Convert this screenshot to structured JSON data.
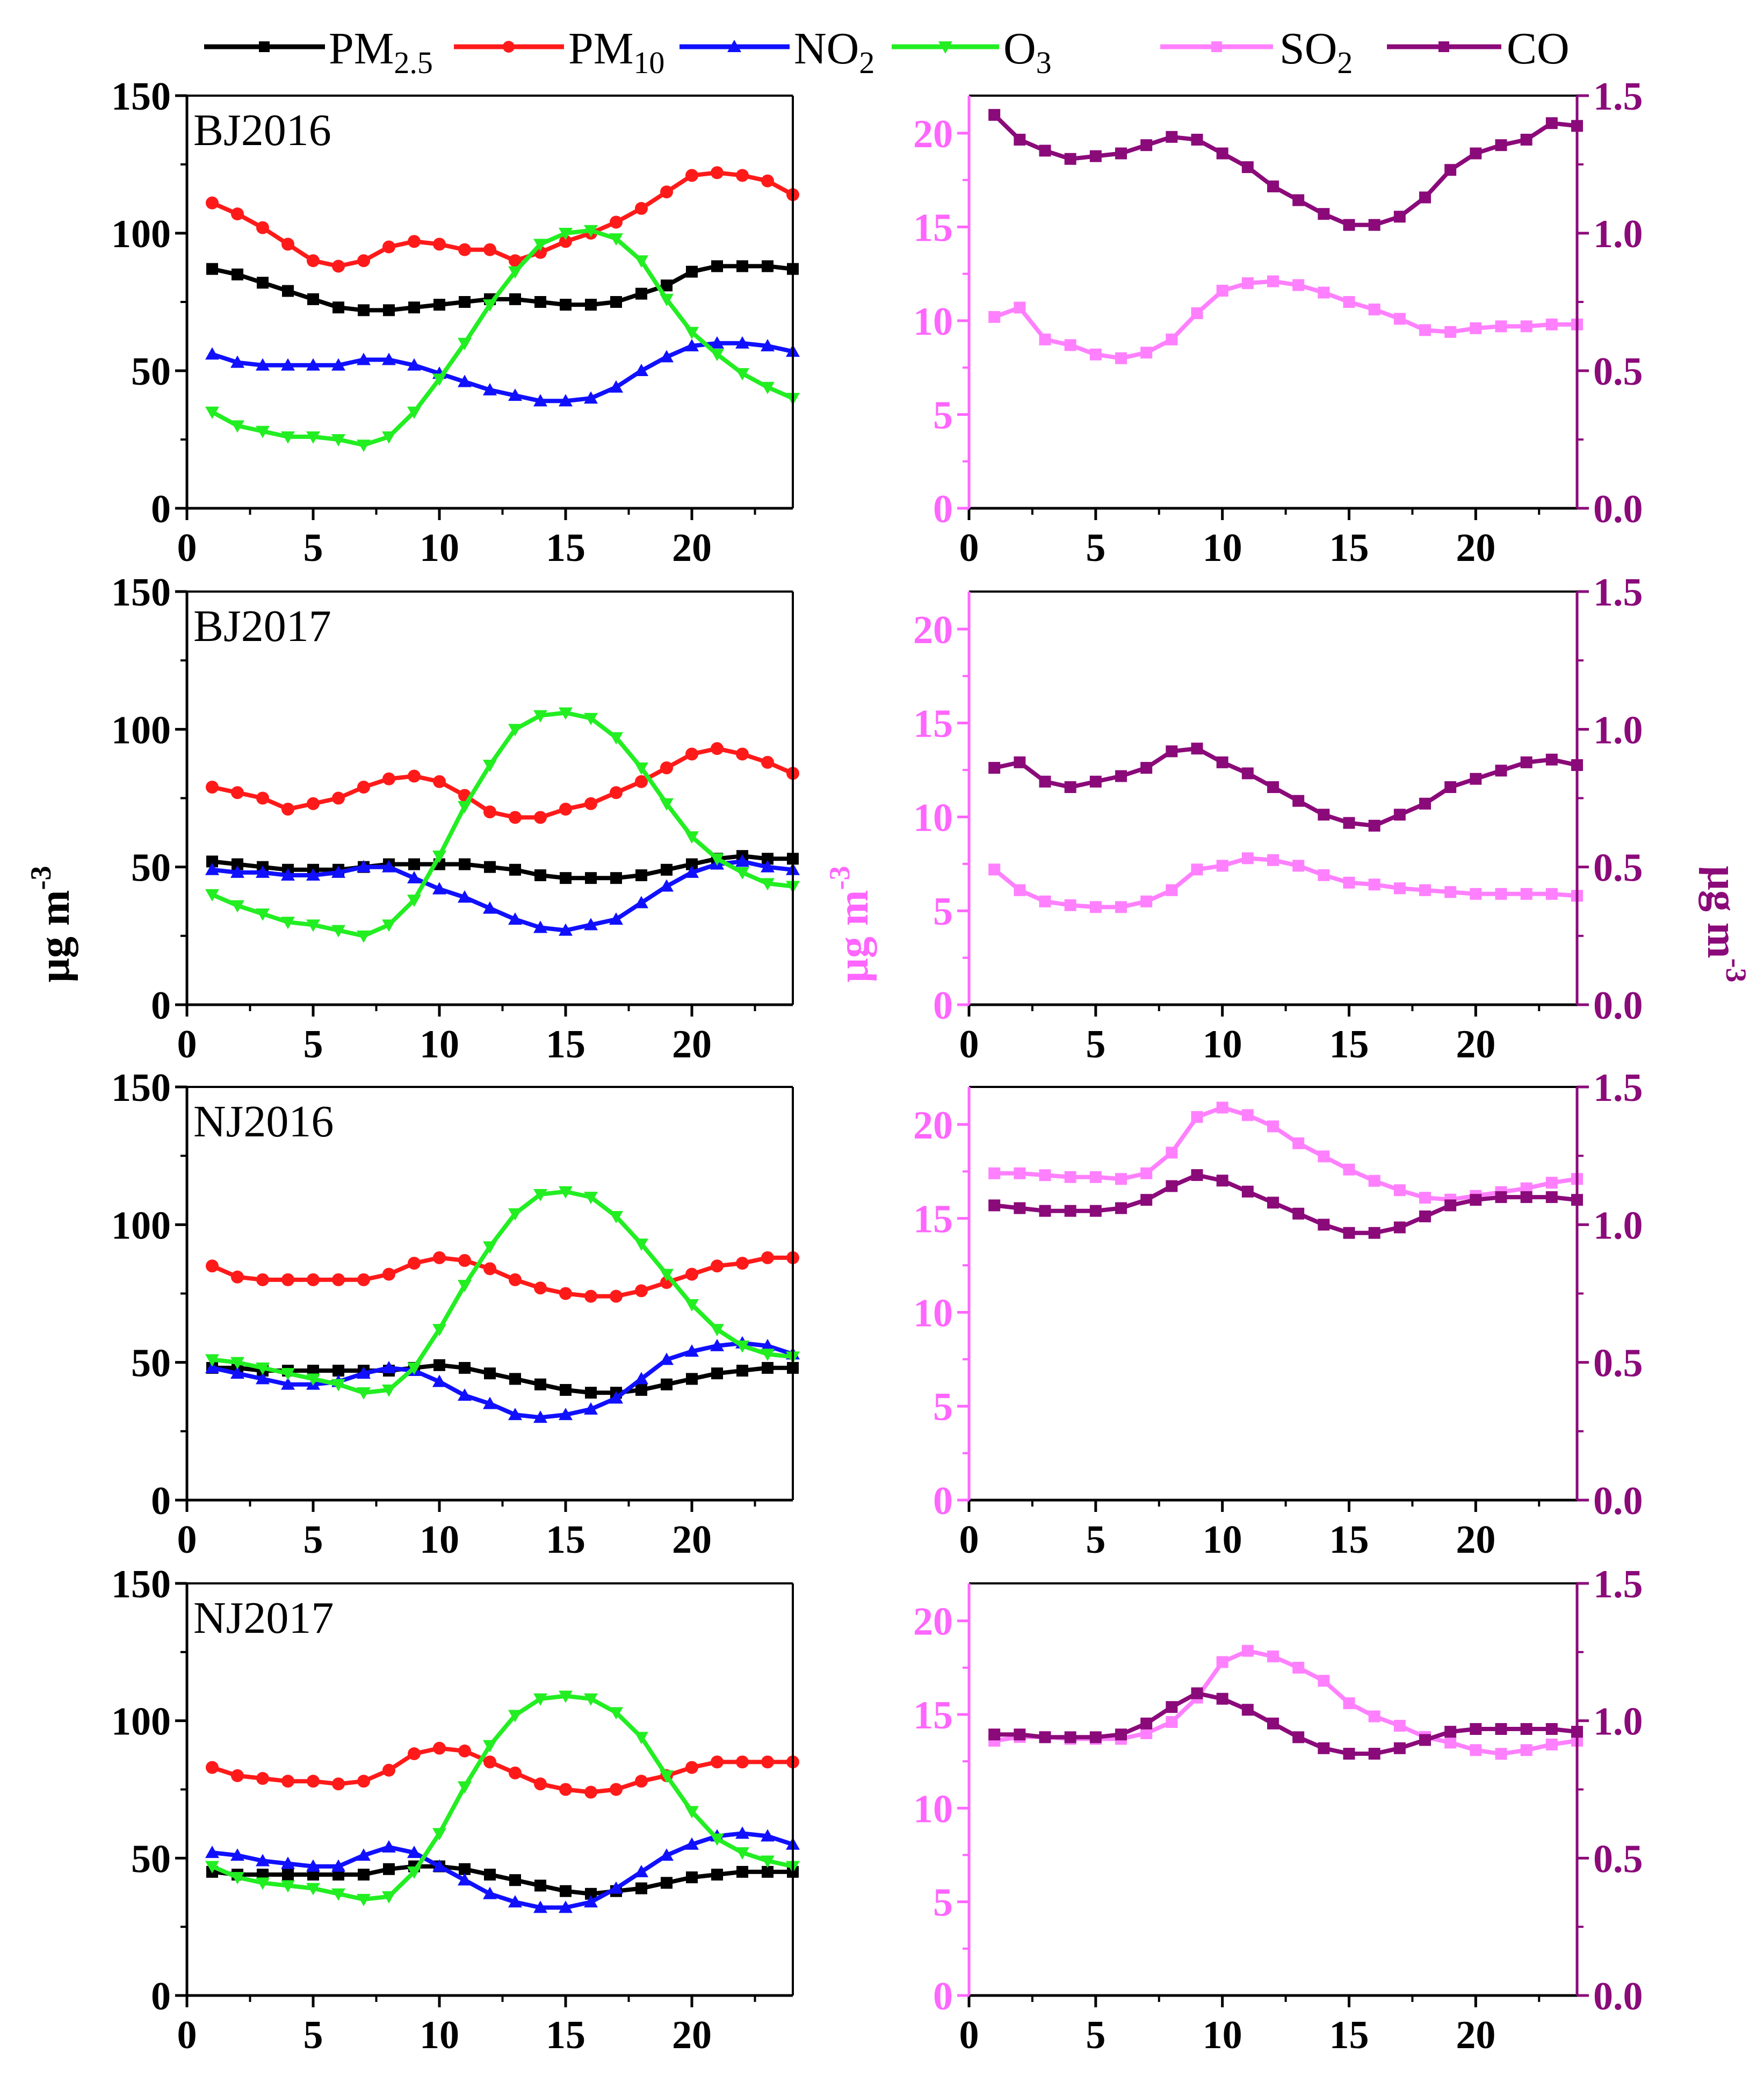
{
  "colors": {
    "pm25": "#000000",
    "pm10": "#ff1a1a",
    "no2": "#1010ff",
    "o3": "#22ee22",
    "so2": "#ff80ff",
    "co": "#8b0a7a",
    "so2_axis": "#ff66ff",
    "co_axis": "#8b0a7a"
  },
  "legend": {
    "pm25": "PM2.5",
    "pm10": "PM10",
    "no2": "NO2",
    "o3": "O3",
    "so2": "SO2",
    "co": "CO"
  },
  "axis_labels": {
    "left": "μg m-3",
    "middle": "μg m-3",
    "right": "μg m-3"
  },
  "chart_data": [
    {
      "type": "line",
      "title": "BJ2016",
      "xlim": [
        0,
        24
      ],
      "ylim": [
        0,
        150
      ],
      "xticks": [
        0,
        5,
        10,
        15,
        20
      ],
      "yticks": [
        0,
        50,
        100,
        150
      ],
      "x": [
        1,
        2,
        3,
        4,
        5,
        6,
        7,
        8,
        9,
        10,
        11,
        12,
        13,
        14,
        15,
        16,
        17,
        18,
        19,
        20,
        21,
        22,
        23,
        24
      ],
      "series": [
        {
          "name": "PM2.5",
          "key": "pm25",
          "values": [
            87,
            85,
            82,
            79,
            76,
            73,
            72,
            72,
            73,
            74,
            75,
            76,
            76,
            75,
            74,
            74,
            75,
            78,
            81,
            86,
            88,
            88,
            88,
            87
          ]
        },
        {
          "name": "PM10",
          "key": "pm10",
          "values": [
            111,
            107,
            102,
            96,
            90,
            88,
            90,
            95,
            97,
            96,
            94,
            94,
            90,
            93,
            97,
            100,
            104,
            109,
            115,
            121,
            122,
            121,
            119,
            114
          ]
        },
        {
          "name": "NO2",
          "key": "no2",
          "values": [
            56,
            53,
            52,
            52,
            52,
            52,
            54,
            54,
            52,
            49,
            46,
            43,
            41,
            39,
            39,
            40,
            44,
            50,
            55,
            59,
            60,
            60,
            59,
            57
          ]
        },
        {
          "name": "O3",
          "key": "o3",
          "values": [
            35,
            30,
            28,
            26,
            26,
            25,
            23,
            26,
            35,
            47,
            60,
            74,
            86,
            96,
            100,
            101,
            98,
            90,
            76,
            64,
            56,
            49,
            44,
            40
          ]
        }
      ]
    },
    {
      "type": "line",
      "title": "BJ2016",
      "xlim": [
        0,
        24
      ],
      "ylim": [
        0,
        22
      ],
      "y2lim": [
        0,
        1.5
      ],
      "xticks": [
        0,
        5,
        10,
        15,
        20
      ],
      "yticks": [
        0,
        5,
        10,
        15,
        20
      ],
      "y2ticks": [
        "0.0",
        "0.5",
        "1.0",
        "1.5"
      ],
      "x": [
        1,
        2,
        3,
        4,
        5,
        6,
        7,
        8,
        9,
        10,
        11,
        12,
        13,
        14,
        15,
        16,
        17,
        18,
        19,
        20,
        21,
        22,
        23,
        24
      ],
      "series": [
        {
          "name": "SO2",
          "key": "so2",
          "axis": "left",
          "values": [
            10.2,
            10.7,
            9.0,
            8.7,
            8.2,
            8.0,
            8.3,
            9.0,
            10.4,
            11.6,
            12.0,
            12.1,
            11.9,
            11.5,
            11.0,
            10.6,
            10.1,
            9.5,
            9.4,
            9.6,
            9.7,
            9.7,
            9.8,
            9.8
          ]
        },
        {
          "name": "CO",
          "key": "co",
          "axis": "right",
          "values": [
            1.43,
            1.34,
            1.3,
            1.27,
            1.28,
            1.29,
            1.32,
            1.35,
            1.34,
            1.29,
            1.24,
            1.17,
            1.12,
            1.07,
            1.03,
            1.03,
            1.06,
            1.13,
            1.23,
            1.29,
            1.32,
            1.34,
            1.4,
            1.39
          ]
        }
      ]
    },
    {
      "type": "line",
      "title": "BJ2017",
      "xlim": [
        0,
        24
      ],
      "ylim": [
        0,
        150
      ],
      "xticks": [
        0,
        5,
        10,
        15,
        20
      ],
      "yticks": [
        0,
        50,
        100,
        150
      ],
      "x": [
        1,
        2,
        3,
        4,
        5,
        6,
        7,
        8,
        9,
        10,
        11,
        12,
        13,
        14,
        15,
        16,
        17,
        18,
        19,
        20,
        21,
        22,
        23,
        24
      ],
      "series": [
        {
          "name": "PM2.5",
          "key": "pm25",
          "values": [
            52,
            51,
            50,
            49,
            49,
            49,
            50,
            51,
            51,
            51,
            51,
            50,
            49,
            47,
            46,
            46,
            46,
            47,
            49,
            51,
            53,
            54,
            53,
            53
          ]
        },
        {
          "name": "PM10",
          "key": "pm10",
          "values": [
            79,
            77,
            75,
            71,
            73,
            75,
            79,
            82,
            83,
            81,
            76,
            70,
            68,
            68,
            71,
            73,
            77,
            81,
            86,
            91,
            93,
            91,
            88,
            84
          ]
        },
        {
          "name": "NO2",
          "key": "no2",
          "values": [
            49,
            48,
            48,
            47,
            47,
            48,
            50,
            50,
            46,
            42,
            39,
            35,
            31,
            28,
            27,
            29,
            31,
            37,
            43,
            48,
            51,
            52,
            50,
            49
          ]
        },
        {
          "name": "O3",
          "key": "o3",
          "values": [
            40,
            36,
            33,
            30,
            29,
            27,
            25,
            29,
            38,
            54,
            72,
            87,
            100,
            105,
            106,
            104,
            97,
            86,
            73,
            61,
            53,
            48,
            44,
            43
          ]
        }
      ]
    },
    {
      "type": "line",
      "title": "BJ2017",
      "xlim": [
        0,
        24
      ],
      "ylim": [
        0,
        22
      ],
      "y2lim": [
        0,
        1.5
      ],
      "xticks": [
        0,
        5,
        10,
        15,
        20
      ],
      "yticks": [
        0,
        5,
        10,
        15,
        20
      ],
      "y2ticks": [
        "0.0",
        "0.5",
        "1.0",
        "1.5"
      ],
      "x": [
        1,
        2,
        3,
        4,
        5,
        6,
        7,
        8,
        9,
        10,
        11,
        12,
        13,
        14,
        15,
        16,
        17,
        18,
        19,
        20,
        21,
        22,
        23,
        24
      ],
      "series": [
        {
          "name": "SO2",
          "key": "so2",
          "axis": "left",
          "values": [
            7.2,
            6.1,
            5.5,
            5.3,
            5.2,
            5.2,
            5.5,
            6.1,
            7.2,
            7.4,
            7.8,
            7.7,
            7.4,
            6.9,
            6.5,
            6.4,
            6.2,
            6.1,
            6.0,
            5.9,
            5.9,
            5.9,
            5.9,
            5.8
          ]
        },
        {
          "name": "CO",
          "key": "co",
          "axis": "right",
          "values": [
            0.86,
            0.88,
            0.81,
            0.79,
            0.81,
            0.83,
            0.86,
            0.92,
            0.93,
            0.88,
            0.84,
            0.79,
            0.74,
            0.69,
            0.66,
            0.65,
            0.69,
            0.73,
            0.79,
            0.82,
            0.85,
            0.88,
            0.89,
            0.87
          ]
        }
      ]
    },
    {
      "type": "line",
      "title": "NJ2016",
      "xlim": [
        0,
        24
      ],
      "ylim": [
        0,
        150
      ],
      "xticks": [
        0,
        5,
        10,
        15,
        20
      ],
      "yticks": [
        0,
        50,
        100,
        150
      ],
      "x": [
        1,
        2,
        3,
        4,
        5,
        6,
        7,
        8,
        9,
        10,
        11,
        12,
        13,
        14,
        15,
        16,
        17,
        18,
        19,
        20,
        21,
        22,
        23,
        24
      ],
      "series": [
        {
          "name": "PM2.5",
          "key": "pm25",
          "values": [
            48,
            48,
            47,
            47,
            47,
            47,
            47,
            47,
            48,
            49,
            48,
            46,
            44,
            42,
            40,
            39,
            39,
            40,
            42,
            44,
            46,
            47,
            48,
            48
          ]
        },
        {
          "name": "PM10",
          "key": "pm10",
          "values": [
            85,
            81,
            80,
            80,
            80,
            80,
            80,
            82,
            86,
            88,
            87,
            84,
            80,
            77,
            75,
            74,
            74,
            76,
            79,
            82,
            85,
            86,
            88,
            88
          ]
        },
        {
          "name": "NO2",
          "key": "no2",
          "values": [
            48,
            46,
            44,
            42,
            42,
            43,
            46,
            48,
            47,
            43,
            38,
            35,
            31,
            30,
            31,
            33,
            37,
            44,
            51,
            54,
            56,
            57,
            56,
            53
          ]
        },
        {
          "name": "O3",
          "key": "o3",
          "values": [
            51,
            50,
            48,
            46,
            44,
            42,
            39,
            40,
            48,
            62,
            78,
            92,
            104,
            111,
            112,
            110,
            103,
            93,
            82,
            71,
            62,
            56,
            53,
            52
          ]
        }
      ]
    },
    {
      "type": "line",
      "title": "NJ2016",
      "xlim": [
        0,
        24
      ],
      "ylim": [
        0,
        22
      ],
      "y2lim": [
        0,
        1.5
      ],
      "xticks": [
        0,
        5,
        10,
        15,
        20
      ],
      "yticks": [
        0,
        5,
        10,
        15,
        20
      ],
      "y2ticks": [
        "0.0",
        "0.5",
        "1.0",
        "1.5"
      ],
      "x": [
        1,
        2,
        3,
        4,
        5,
        6,
        7,
        8,
        9,
        10,
        11,
        12,
        13,
        14,
        15,
        16,
        17,
        18,
        19,
        20,
        21,
        22,
        23,
        24
      ],
      "series": [
        {
          "name": "SO2",
          "key": "so2",
          "axis": "left",
          "values": [
            17.4,
            17.4,
            17.3,
            17.2,
            17.2,
            17.1,
            17.4,
            18.5,
            20.4,
            20.9,
            20.5,
            19.9,
            19.0,
            18.3,
            17.6,
            17.0,
            16.5,
            16.1,
            16.0,
            16.2,
            16.4,
            16.6,
            16.9,
            17.1
          ]
        },
        {
          "name": "CO",
          "key": "co",
          "axis": "right",
          "values": [
            1.07,
            1.06,
            1.05,
            1.05,
            1.05,
            1.06,
            1.09,
            1.14,
            1.18,
            1.16,
            1.12,
            1.08,
            1.04,
            1.0,
            0.97,
            0.97,
            0.99,
            1.03,
            1.07,
            1.09,
            1.1,
            1.1,
            1.1,
            1.09
          ]
        }
      ]
    },
    {
      "type": "line",
      "title": "NJ2017",
      "xlim": [
        0,
        24
      ],
      "ylim": [
        0,
        150
      ],
      "xticks": [
        0,
        5,
        10,
        15,
        20
      ],
      "yticks": [
        0,
        50,
        100,
        150
      ],
      "x": [
        1,
        2,
        3,
        4,
        5,
        6,
        7,
        8,
        9,
        10,
        11,
        12,
        13,
        14,
        15,
        16,
        17,
        18,
        19,
        20,
        21,
        22,
        23,
        24
      ],
      "series": [
        {
          "name": "PM2.5",
          "key": "pm25",
          "values": [
            45,
            44,
            44,
            44,
            44,
            44,
            44,
            46,
            47,
            47,
            46,
            44,
            42,
            40,
            38,
            37,
            38,
            39,
            41,
            43,
            44,
            45,
            45,
            45
          ]
        },
        {
          "name": "PM10",
          "key": "pm10",
          "values": [
            83,
            80,
            79,
            78,
            78,
            77,
            78,
            82,
            88,
            90,
            89,
            85,
            81,
            77,
            75,
            74,
            75,
            78,
            80,
            83,
            85,
            85,
            85,
            85
          ]
        },
        {
          "name": "NO2",
          "key": "no2",
          "values": [
            52,
            51,
            49,
            48,
            47,
            47,
            51,
            54,
            52,
            47,
            42,
            37,
            34,
            32,
            32,
            34,
            39,
            45,
            51,
            55,
            58,
            59,
            58,
            55
          ]
        },
        {
          "name": "O3",
          "key": "o3",
          "values": [
            47,
            43,
            41,
            40,
            39,
            37,
            35,
            36,
            45,
            59,
            76,
            91,
            102,
            108,
            109,
            108,
            103,
            94,
            80,
            67,
            57,
            52,
            49,
            47
          ]
        }
      ]
    },
    {
      "type": "line",
      "title": "NJ2017",
      "xlim": [
        0,
        24
      ],
      "ylim": [
        0,
        22
      ],
      "y2lim": [
        0,
        1.5
      ],
      "xticks": [
        0,
        5,
        10,
        15,
        20
      ],
      "yticks": [
        0,
        5,
        10,
        15,
        20
      ],
      "y2ticks": [
        "0.0",
        "0.5",
        "1.0",
        "1.5"
      ],
      "x": [
        1,
        2,
        3,
        4,
        5,
        6,
        7,
        8,
        9,
        10,
        11,
        12,
        13,
        14,
        15,
        16,
        17,
        18,
        19,
        20,
        21,
        22,
        23,
        24
      ],
      "series": [
        {
          "name": "SO2",
          "key": "so2",
          "axis": "left",
          "values": [
            13.6,
            13.8,
            13.8,
            13.7,
            13.7,
            13.7,
            14.0,
            14.6,
            15.9,
            17.8,
            18.4,
            18.1,
            17.5,
            16.8,
            15.6,
            14.9,
            14.4,
            13.8,
            13.5,
            13.1,
            12.9,
            13.1,
            13.4,
            13.6
          ]
        },
        {
          "name": "CO",
          "key": "co",
          "axis": "right",
          "values": [
            0.95,
            0.95,
            0.94,
            0.94,
            0.94,
            0.95,
            0.99,
            1.05,
            1.1,
            1.08,
            1.04,
            0.99,
            0.94,
            0.9,
            0.88,
            0.88,
            0.9,
            0.93,
            0.96,
            0.97,
            0.97,
            0.97,
            0.97,
            0.96
          ]
        }
      ]
    }
  ]
}
